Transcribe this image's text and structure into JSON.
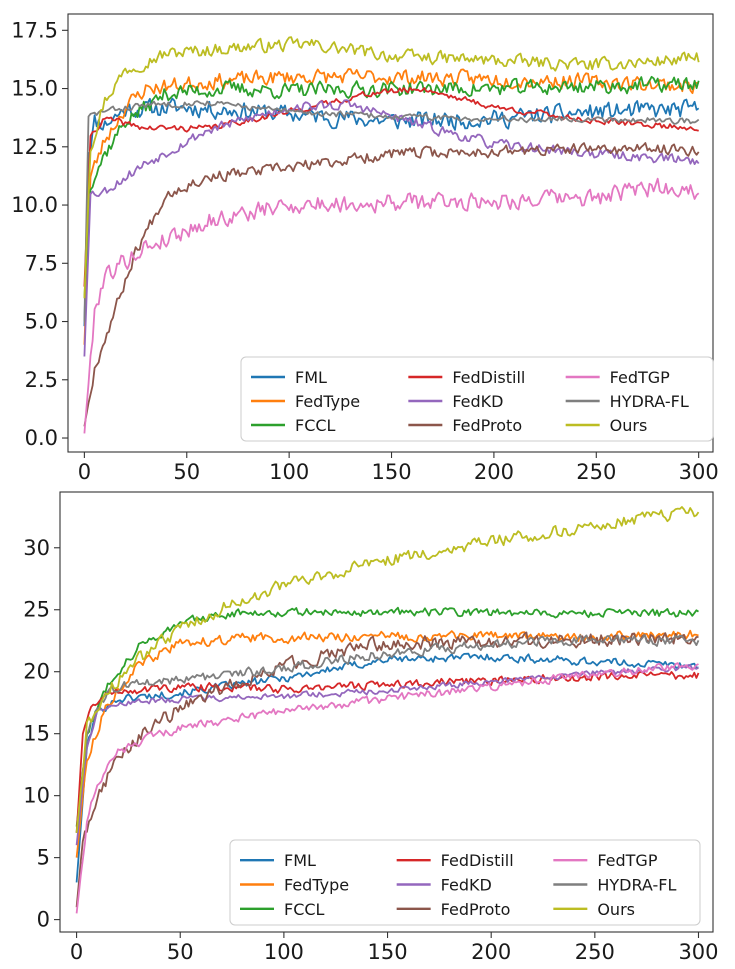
{
  "chart_data": [
    {
      "type": "line",
      "xlim": [
        -8,
        307
      ],
      "ylim": [
        -0.6,
        18.2
      ],
      "x_ticks": [
        0,
        50,
        100,
        150,
        200,
        250,
        300
      ],
      "x_tick_labels": [
        "0",
        "50",
        "100",
        "150",
        "200",
        "250",
        "300"
      ],
      "y_ticks": [
        0,
        2.5,
        5,
        7.5,
        10,
        12.5,
        15,
        17.5
      ],
      "y_tick_labels": [
        "0.0",
        "2.5",
        "5.0",
        "7.5",
        "10.0",
        "12.5",
        "15.0",
        "17.5"
      ],
      "legend_position": "lower-right",
      "legend_columns": 3,
      "series": [
        {
          "name": "FML",
          "color": "#1f77b4",
          "keypoints": [
            [
              0,
              4.8
            ],
            [
              2,
              12.2
            ],
            [
              5,
              13.6
            ],
            [
              10,
              13.5
            ],
            [
              20,
              14.1
            ],
            [
              50,
              14.2
            ],
            [
              100,
              13.9
            ],
            [
              150,
              13.6
            ],
            [
              200,
              13.7
            ],
            [
              250,
              14.0
            ],
            [
              300,
              14.1
            ]
          ],
          "noise": 0.35,
          "seed": 11
        },
        {
          "name": "FedType",
          "color": "#ff7f0e",
          "keypoints": [
            [
              0,
              4.0
            ],
            [
              3,
              11.2
            ],
            [
              10,
              12.8
            ],
            [
              20,
              14.2
            ],
            [
              30,
              15.0
            ],
            [
              60,
              15.3
            ],
            [
              100,
              15.5
            ],
            [
              150,
              15.5
            ],
            [
              200,
              15.4
            ],
            [
              250,
              15.3
            ],
            [
              300,
              15.1
            ]
          ],
          "noise": 0.3,
          "seed": 23
        },
        {
          "name": "FCCL",
          "color": "#2ca02c",
          "keypoints": [
            [
              0,
              6.0
            ],
            [
              3,
              11.0
            ],
            [
              10,
              12.2
            ],
            [
              20,
              13.6
            ],
            [
              40,
              14.8
            ],
            [
              70,
              15.0
            ],
            [
              100,
              14.9
            ],
            [
              150,
              15.0
            ],
            [
              200,
              15.0
            ],
            [
              250,
              15.1
            ],
            [
              300,
              15.2
            ]
          ],
          "noise": 0.3,
          "seed": 37
        },
        {
          "name": "FedDistill",
          "color": "#d62728",
          "keypoints": [
            [
              0,
              6.5
            ],
            [
              3,
              13.0
            ],
            [
              10,
              13.7
            ],
            [
              30,
              13.3
            ],
            [
              60,
              13.3
            ],
            [
              100,
              14.0
            ],
            [
              140,
              14.8
            ],
            [
              165,
              15.0
            ],
            [
              200,
              14.2
            ],
            [
              250,
              13.6
            ],
            [
              300,
              13.3
            ]
          ],
          "noise": 0.12,
          "seed": 41
        },
        {
          "name": "FedKD",
          "color": "#9467bd",
          "keypoints": [
            [
              0,
              3.5
            ],
            [
              3,
              10.5
            ],
            [
              10,
              10.6
            ],
            [
              30,
              11.8
            ],
            [
              60,
              13.2
            ],
            [
              100,
              14.2
            ],
            [
              130,
              14.3
            ],
            [
              170,
              13.3
            ],
            [
              200,
              12.6
            ],
            [
              250,
              12.2
            ],
            [
              300,
              11.9
            ]
          ],
          "noise": 0.2,
          "seed": 53
        },
        {
          "name": "FedProto",
          "color": "#8c564b",
          "keypoints": [
            [
              0,
              0.5
            ],
            [
              5,
              3.0
            ],
            [
              15,
              5.5
            ],
            [
              25,
              8.0
            ],
            [
              40,
              10.5
            ],
            [
              60,
              11.2
            ],
            [
              100,
              11.6
            ],
            [
              150,
              12.2
            ],
            [
              200,
              12.3
            ],
            [
              250,
              12.4
            ],
            [
              300,
              12.4
            ]
          ],
          "noise": 0.22,
          "seed": 67
        },
        {
          "name": "FedTGP",
          "color": "#e377c2",
          "keypoints": [
            [
              0,
              0.2
            ],
            [
              5,
              5.5
            ],
            [
              10,
              7.0
            ],
            [
              30,
              8.2
            ],
            [
              60,
              9.3
            ],
            [
              100,
              10.0
            ],
            [
              150,
              10.1
            ],
            [
              200,
              10.2
            ],
            [
              250,
              10.3
            ],
            [
              280,
              10.8
            ],
            [
              300,
              10.6
            ]
          ],
          "noise": 0.35,
          "seed": 79
        },
        {
          "name": "HYDRA-FL",
          "color": "#7f7f7f",
          "keypoints": [
            [
              0,
              5.0
            ],
            [
              2,
              13.8
            ],
            [
              8,
              14.0
            ],
            [
              30,
              14.3
            ],
            [
              60,
              14.4
            ],
            [
              100,
              14.0
            ],
            [
              150,
              13.8
            ],
            [
              200,
              13.7
            ],
            [
              250,
              13.7
            ],
            [
              300,
              13.6
            ]
          ],
          "noise": 0.12,
          "seed": 83
        },
        {
          "name": "Ours",
          "color": "#bcbd22",
          "keypoints": [
            [
              0,
              6.0
            ],
            [
              3,
              12.5
            ],
            [
              10,
              14.5
            ],
            [
              20,
              15.8
            ],
            [
              40,
              16.5
            ],
            [
              80,
              16.8
            ],
            [
              110,
              16.9
            ],
            [
              150,
              16.4
            ],
            [
              200,
              16.2
            ],
            [
              250,
              16.0
            ],
            [
              300,
              16.3
            ]
          ],
          "noise": 0.25,
          "seed": 97
        }
      ]
    },
    {
      "type": "line",
      "xlim": [
        -8,
        307
      ],
      "ylim": [
        -1.0,
        34.5
      ],
      "x_ticks": [
        0,
        50,
        100,
        150,
        200,
        250,
        300
      ],
      "x_tick_labels": [
        "0",
        "50",
        "100",
        "150",
        "200",
        "250",
        "300"
      ],
      "y_ticks": [
        0,
        5,
        10,
        15,
        20,
        25,
        30
      ],
      "y_tick_labels": [
        "0",
        "5",
        "10",
        "15",
        "20",
        "25",
        "30"
      ],
      "legend_position": "lower-right",
      "legend_columns": 3,
      "series": [
        {
          "name": "FML",
          "color": "#1f77b4",
          "keypoints": [
            [
              0,
              3.0
            ],
            [
              5,
              14.0
            ],
            [
              10,
              16.8
            ],
            [
              20,
              17.8
            ],
            [
              50,
              18.3
            ],
            [
              100,
              19.5
            ],
            [
              150,
              21.0
            ],
            [
              200,
              21.2
            ],
            [
              250,
              20.8
            ],
            [
              300,
              20.5
            ]
          ],
          "noise": 0.3,
          "seed": 101
        },
        {
          "name": "FedType",
          "color": "#ff7f0e",
          "keypoints": [
            [
              0,
              5.0
            ],
            [
              5,
              13.0
            ],
            [
              15,
              17.5
            ],
            [
              30,
              20.5
            ],
            [
              50,
              22.3
            ],
            [
              80,
              22.7
            ],
            [
              120,
              22.8
            ],
            [
              200,
              22.9
            ],
            [
              250,
              22.8
            ],
            [
              300,
              23.0
            ]
          ],
          "noise": 0.35,
          "seed": 113
        },
        {
          "name": "FCCL",
          "color": "#2ca02c",
          "keypoints": [
            [
              0,
              7.5
            ],
            [
              5,
              15.0
            ],
            [
              15,
              19.0
            ],
            [
              30,
              22.0
            ],
            [
              50,
              24.0
            ],
            [
              80,
              24.8
            ],
            [
              120,
              24.8
            ],
            [
              200,
              24.8
            ],
            [
              250,
              24.7
            ],
            [
              300,
              24.7
            ]
          ],
          "noise": 0.3,
          "seed": 127
        },
        {
          "name": "FedDistill",
          "color": "#d62728",
          "keypoints": [
            [
              0,
              7.0
            ],
            [
              3,
              15.0
            ],
            [
              8,
              17.5
            ],
            [
              20,
              18.5
            ],
            [
              60,
              18.8
            ],
            [
              100,
              18.6
            ],
            [
              150,
              19.0
            ],
            [
              200,
              19.3
            ],
            [
              250,
              19.6
            ],
            [
              300,
              19.7
            ]
          ],
          "noise": 0.3,
          "seed": 131
        },
        {
          "name": "FedKD",
          "color": "#9467bd",
          "keypoints": [
            [
              0,
              6.0
            ],
            [
              5,
              14.0
            ],
            [
              10,
              16.8
            ],
            [
              20,
              17.5
            ],
            [
              50,
              17.8
            ],
            [
              100,
              18.0
            ],
            [
              150,
              18.5
            ],
            [
              200,
              19.2
            ],
            [
              250,
              19.9
            ],
            [
              300,
              20.4
            ]
          ],
          "noise": 0.22,
          "seed": 137
        },
        {
          "name": "FedProto",
          "color": "#8c564b",
          "keypoints": [
            [
              0,
              1.0
            ],
            [
              3,
              6.5
            ],
            [
              10,
              10.0
            ],
            [
              20,
              13.0
            ],
            [
              35,
              15.5
            ],
            [
              60,
              18.0
            ],
            [
              100,
              20.5
            ],
            [
              130,
              21.8
            ],
            [
              150,
              22.3
            ],
            [
              200,
              22.4
            ],
            [
              250,
              22.6
            ],
            [
              300,
              22.8
            ]
          ],
          "noise": 0.5,
          "seed": 149
        },
        {
          "name": "FedTGP",
          "color": "#e377c2",
          "keypoints": [
            [
              0,
              0.5
            ],
            [
              5,
              8.0
            ],
            [
              10,
              11.0
            ],
            [
              20,
              13.5
            ],
            [
              40,
              15.0
            ],
            [
              60,
              15.8
            ],
            [
              100,
              16.8
            ],
            [
              150,
              17.8
            ],
            [
              200,
              18.8
            ],
            [
              250,
              19.8
            ],
            [
              300,
              20.5
            ]
          ],
          "noise": 0.3,
          "seed": 151
        },
        {
          "name": "HYDRA-FL",
          "color": "#7f7f7f",
          "keypoints": [
            [
              0,
              7.0
            ],
            [
              5,
              15.0
            ],
            [
              15,
              18.5
            ],
            [
              30,
              19.2
            ],
            [
              60,
              19.5
            ],
            [
              100,
              20.3
            ],
            [
              150,
              21.5
            ],
            [
              200,
              22.2
            ],
            [
              250,
              22.6
            ],
            [
              300,
              22.5
            ]
          ],
          "noise": 0.35,
          "seed": 163
        },
        {
          "name": "Ours",
          "color": "#bcbd22",
          "keypoints": [
            [
              0,
              7.0
            ],
            [
              5,
              15.5
            ],
            [
              15,
              18.5
            ],
            [
              30,
              21.0
            ],
            [
              50,
              23.5
            ],
            [
              75,
              25.5
            ],
            [
              100,
              27.0
            ],
            [
              150,
              29.0
            ],
            [
              200,
              30.5
            ],
            [
              250,
              31.8
            ],
            [
              300,
              32.9
            ]
          ],
          "noise": 0.45,
          "seed": 173
        }
      ]
    }
  ]
}
